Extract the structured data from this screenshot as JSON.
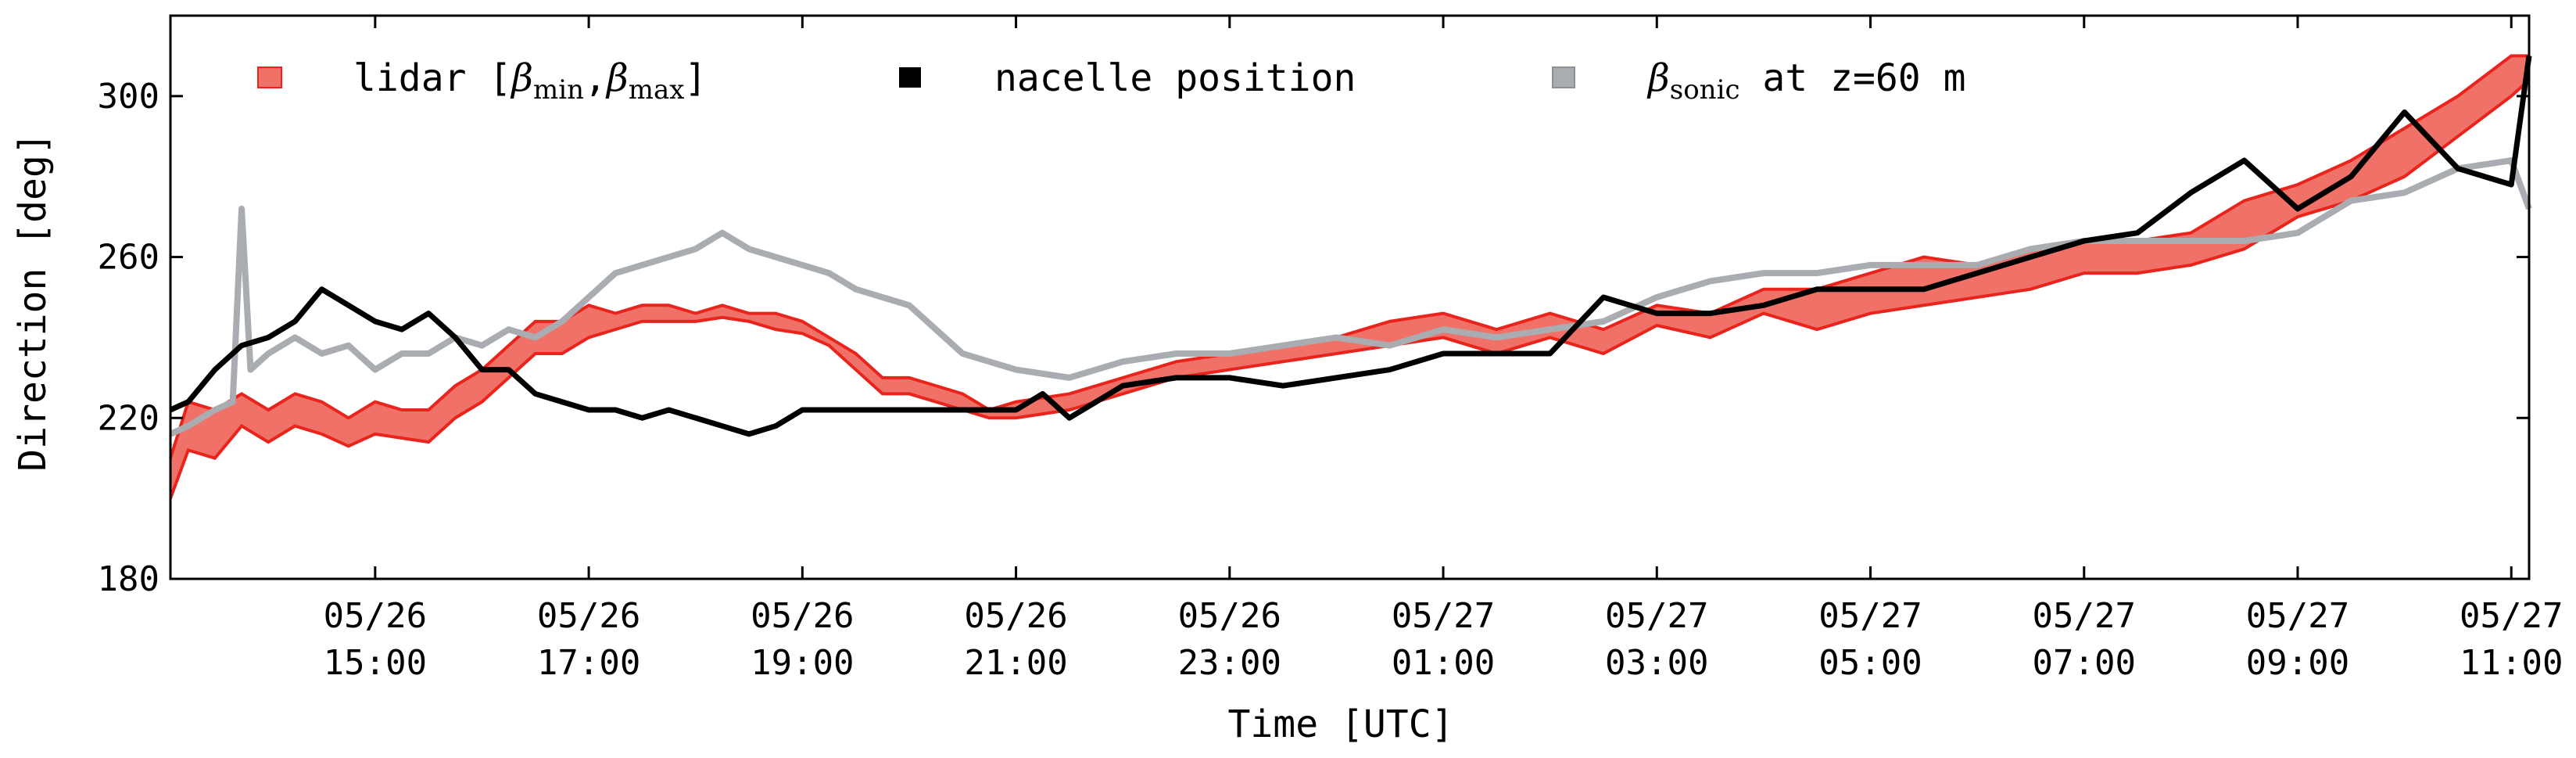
{
  "chart_data": {
    "type": "line",
    "xlabel": "Time [UTC]",
    "ylabel": "Direction [deg]",
    "ylim": [
      180,
      320
    ],
    "xlim": [
      "05/26 13:05",
      "05/27 11:10"
    ],
    "yticks": [
      180,
      220,
      260,
      300
    ],
    "xticks": [
      {
        "date": "05/26",
        "time": "15:00"
      },
      {
        "date": "05/26",
        "time": "17:00"
      },
      {
        "date": "05/26",
        "time": "19:00"
      },
      {
        "date": "05/26",
        "time": "21:00"
      },
      {
        "date": "05/26",
        "time": "23:00"
      },
      {
        "date": "05/27",
        "time": "01:00"
      },
      {
        "date": "05/27",
        "time": "03:00"
      },
      {
        "date": "05/27",
        "time": "05:00"
      },
      {
        "date": "05/27",
        "time": "07:00"
      },
      {
        "date": "05/27",
        "time": "09:00"
      },
      {
        "date": "05/27",
        "time": "11:00"
      }
    ],
    "grid": false,
    "legend": {
      "placement": "top-left",
      "entries": [
        {
          "text": "lidar [β_min, β_max]",
          "parts": {
            "bracket_open": "lidar [",
            "beta1": "β",
            "sub1": "min",
            "comma": ",",
            "beta2": "β",
            "sub2": "max",
            "bracket_close": "]"
          },
          "color": "#f07167"
        },
        {
          "text": "nacelle position",
          "color": "#000000"
        },
        {
          "text": "β_sonic at z=60 m",
          "parts": {
            "beta": "β",
            "sub": "sonic",
            "rest": " at z=60 m"
          },
          "color": "#a9acb0"
        }
      ]
    },
    "series": [
      {
        "name": "lidar [β_min, β_max]",
        "kind": "band",
        "color_fill": "#f07167",
        "color_edge": "#e8241c",
        "x": [
          "05/26 13:05",
          "05/26 13:15",
          "05/26 13:30",
          "05/26 13:45",
          "05/26 14:00",
          "05/26 14:15",
          "05/26 14:30",
          "05/26 14:45",
          "05/26 15:00",
          "05/26 15:15",
          "05/26 15:30",
          "05/26 15:45",
          "05/26 16:00",
          "05/26 16:15",
          "05/26 16:30",
          "05/26 16:45",
          "05/26 17:00",
          "05/26 17:15",
          "05/26 17:30",
          "05/26 17:45",
          "05/26 18:00",
          "05/26 18:15",
          "05/26 18:30",
          "05/26 18:45",
          "05/26 19:00",
          "05/26 19:15",
          "05/26 19:30",
          "05/26 19:45",
          "05/26 20:00",
          "05/26 20:15",
          "05/26 20:30",
          "05/26 20:45",
          "05/26 21:00",
          "05/26 21:30",
          "05/26 22:00",
          "05/26 22:30",
          "05/26 23:00",
          "05/26 23:30",
          "05/27 00:00",
          "05/27 00:30",
          "05/27 01:00",
          "05/27 01:30",
          "05/27 02:00",
          "05/27 02:30",
          "05/27 03:00",
          "05/27 03:30",
          "05/27 04:00",
          "05/27 04:30",
          "05/27 05:00",
          "05/27 05:30",
          "05/27 06:00",
          "05/27 06:30",
          "05/27 07:00",
          "05/27 07:30",
          "05/27 08:00",
          "05/27 08:30",
          "05/27 09:00",
          "05/27 09:30",
          "05/27 10:00",
          "05/27 10:30",
          "05/27 11:00",
          "05/27 11:10"
        ],
        "low": [
          200,
          212,
          210,
          218,
          214,
          218,
          216,
          213,
          216,
          215,
          214,
          220,
          224,
          230,
          236,
          236,
          240,
          242,
          244,
          244,
          244,
          245,
          244,
          242,
          241,
          238,
          232,
          226,
          226,
          224,
          222,
          220,
          220,
          222,
          226,
          230,
          232,
          234,
          236,
          238,
          240,
          236,
          240,
          236,
          243,
          240,
          246,
          242,
          246,
          248,
          250,
          252,
          256,
          256,
          258,
          262,
          270,
          274,
          280,
          290,
          300,
          304
        ],
        "high": [
          210,
          224,
          222,
          226,
          222,
          226,
          224,
          220,
          224,
          222,
          222,
          228,
          232,
          238,
          244,
          244,
          248,
          246,
          248,
          248,
          246,
          248,
          246,
          246,
          244,
          240,
          236,
          230,
          230,
          228,
          226,
          222,
          224,
          226,
          230,
          234,
          236,
          238,
          240,
          244,
          246,
          242,
          246,
          242,
          248,
          246,
          252,
          252,
          256,
          260,
          258,
          262,
          264,
          264,
          266,
          274,
          278,
          284,
          292,
          300,
          310,
          310
        ]
      },
      {
        "name": "nacelle position",
        "kind": "line",
        "color": "#000000",
        "x": [
          "05/26 13:05",
          "05/26 13:15",
          "05/26 13:30",
          "05/26 13:45",
          "05/26 14:00",
          "05/26 14:15",
          "05/26 14:30",
          "05/26 14:45",
          "05/26 15:00",
          "05/26 15:15",
          "05/26 15:30",
          "05/26 15:45",
          "05/26 16:00",
          "05/26 16:15",
          "05/26 16:30",
          "05/26 16:45",
          "05/26 17:00",
          "05/26 17:15",
          "05/26 17:30",
          "05/26 17:45",
          "05/26 18:00",
          "05/26 18:15",
          "05/26 18:30",
          "05/26 18:45",
          "05/26 19:00",
          "05/26 19:15",
          "05/26 19:30",
          "05/26 20:00",
          "05/26 20:30",
          "05/26 21:00",
          "05/26 21:15",
          "05/26 21:30",
          "05/26 22:00",
          "05/26 22:30",
          "05/26 23:00",
          "05/26 23:30",
          "05/27 00:00",
          "05/27 00:30",
          "05/27 01:00",
          "05/27 01:30",
          "05/27 02:00",
          "05/27 02:30",
          "05/27 03:00",
          "05/27 03:30",
          "05/27 04:00",
          "05/27 04:30",
          "05/27 05:00",
          "05/27 05:30",
          "05/27 06:00",
          "05/27 06:30",
          "05/27 07:00",
          "05/27 07:30",
          "05/27 08:00",
          "05/27 08:30",
          "05/27 09:00",
          "05/27 09:30",
          "05/27 10:00",
          "05/27 10:30",
          "05/27 11:00",
          "05/27 11:10"
        ],
        "values": [
          222,
          224,
          232,
          238,
          240,
          244,
          252,
          248,
          244,
          242,
          246,
          240,
          232,
          232,
          226,
          224,
          222,
          222,
          220,
          222,
          220,
          218,
          216,
          218,
          222,
          222,
          222,
          222,
          222,
          222,
          226,
          220,
          228,
          230,
          230,
          228,
          230,
          232,
          236,
          236,
          236,
          250,
          246,
          246,
          248,
          252,
          252,
          252,
          256,
          260,
          264,
          266,
          276,
          284,
          272,
          280,
          296,
          282,
          278,
          310
        ]
      },
      {
        "name": "β_sonic at z=60 m",
        "kind": "line",
        "color": "#a9acb0",
        "x": [
          "05/26 13:05",
          "05/26 13:15",
          "05/26 13:30",
          "05/26 13:40",
          "05/26 13:45",
          "05/26 13:50",
          "05/26 14:00",
          "05/26 14:15",
          "05/26 14:30",
          "05/26 14:45",
          "05/26 15:00",
          "05/26 15:15",
          "05/26 15:30",
          "05/26 15:45",
          "05/26 16:00",
          "05/26 16:15",
          "05/26 16:30",
          "05/26 16:45",
          "05/26 17:00",
          "05/26 17:15",
          "05/26 17:30",
          "05/26 17:45",
          "05/26 18:00",
          "05/26 18:15",
          "05/26 18:30",
          "05/26 18:45",
          "05/26 19:00",
          "05/26 19:15",
          "05/26 19:30",
          "05/26 19:45",
          "05/26 20:00",
          "05/26 20:15",
          "05/26 20:30",
          "05/26 20:45",
          "05/26 21:00",
          "05/26 21:30",
          "05/26 22:00",
          "05/26 22:30",
          "05/26 23:00",
          "05/26 23:30",
          "05/27 00:00",
          "05/27 00:30",
          "05/27 01:00",
          "05/27 01:30",
          "05/27 02:00",
          "05/27 02:30",
          "05/27 03:00",
          "05/27 03:30",
          "05/27 04:00",
          "05/27 04:30",
          "05/27 05:00",
          "05/27 05:30",
          "05/27 06:00",
          "05/27 06:30",
          "05/27 07:00",
          "05/27 07:30",
          "05/27 08:00",
          "05/27 08:30",
          "05/27 09:00",
          "05/27 09:30",
          "05/27 10:00",
          "05/27 10:30",
          "05/27 11:00",
          "05/27 11:10"
        ],
        "values": [
          216,
          218,
          222,
          224,
          272,
          232,
          236,
          240,
          236,
          238,
          232,
          236,
          236,
          240,
          238,
          242,
          240,
          244,
          250,
          256,
          258,
          260,
          262,
          266,
          262,
          260,
          258,
          256,
          252,
          250,
          248,
          242,
          236,
          234,
          232,
          230,
          234,
          236,
          236,
          238,
          240,
          238,
          242,
          240,
          242,
          244,
          250,
          254,
          256,
          256,
          258,
          258,
          258,
          262,
          264,
          264,
          264,
          264,
          266,
          274,
          276,
          282,
          284,
          272
        ]
      }
    ]
  }
}
